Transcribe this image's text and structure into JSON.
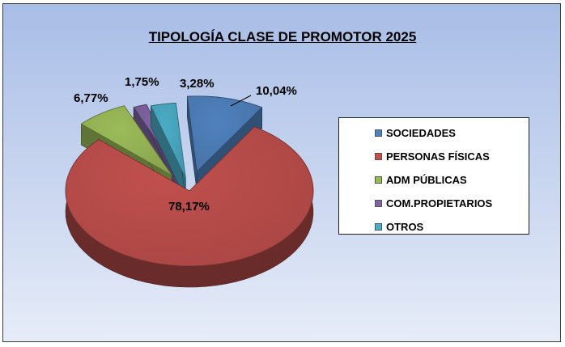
{
  "chart_data": {
    "type": "pie",
    "title": "TIPOLOGÍA CLASE DE PROMOTOR 2025",
    "categories": [
      "SOCIEDADES",
      "PERSONAS FÍSICAS",
      "ADM PÚBLICAS",
      "COM.PROPIETARIOS",
      "OTROS"
    ],
    "values": [
      10.04,
      78.17,
      6.77,
      1.75,
      3.28
    ],
    "value_labels": [
      "10,04%",
      "78,17%",
      "6,77%",
      "1,75%",
      "3,28%"
    ],
    "colors": [
      "#4f81bd",
      "#c0504d",
      "#9bbb59",
      "#8064a2",
      "#4bacc6"
    ],
    "legend_position": "right",
    "style": "3d-exploded"
  }
}
